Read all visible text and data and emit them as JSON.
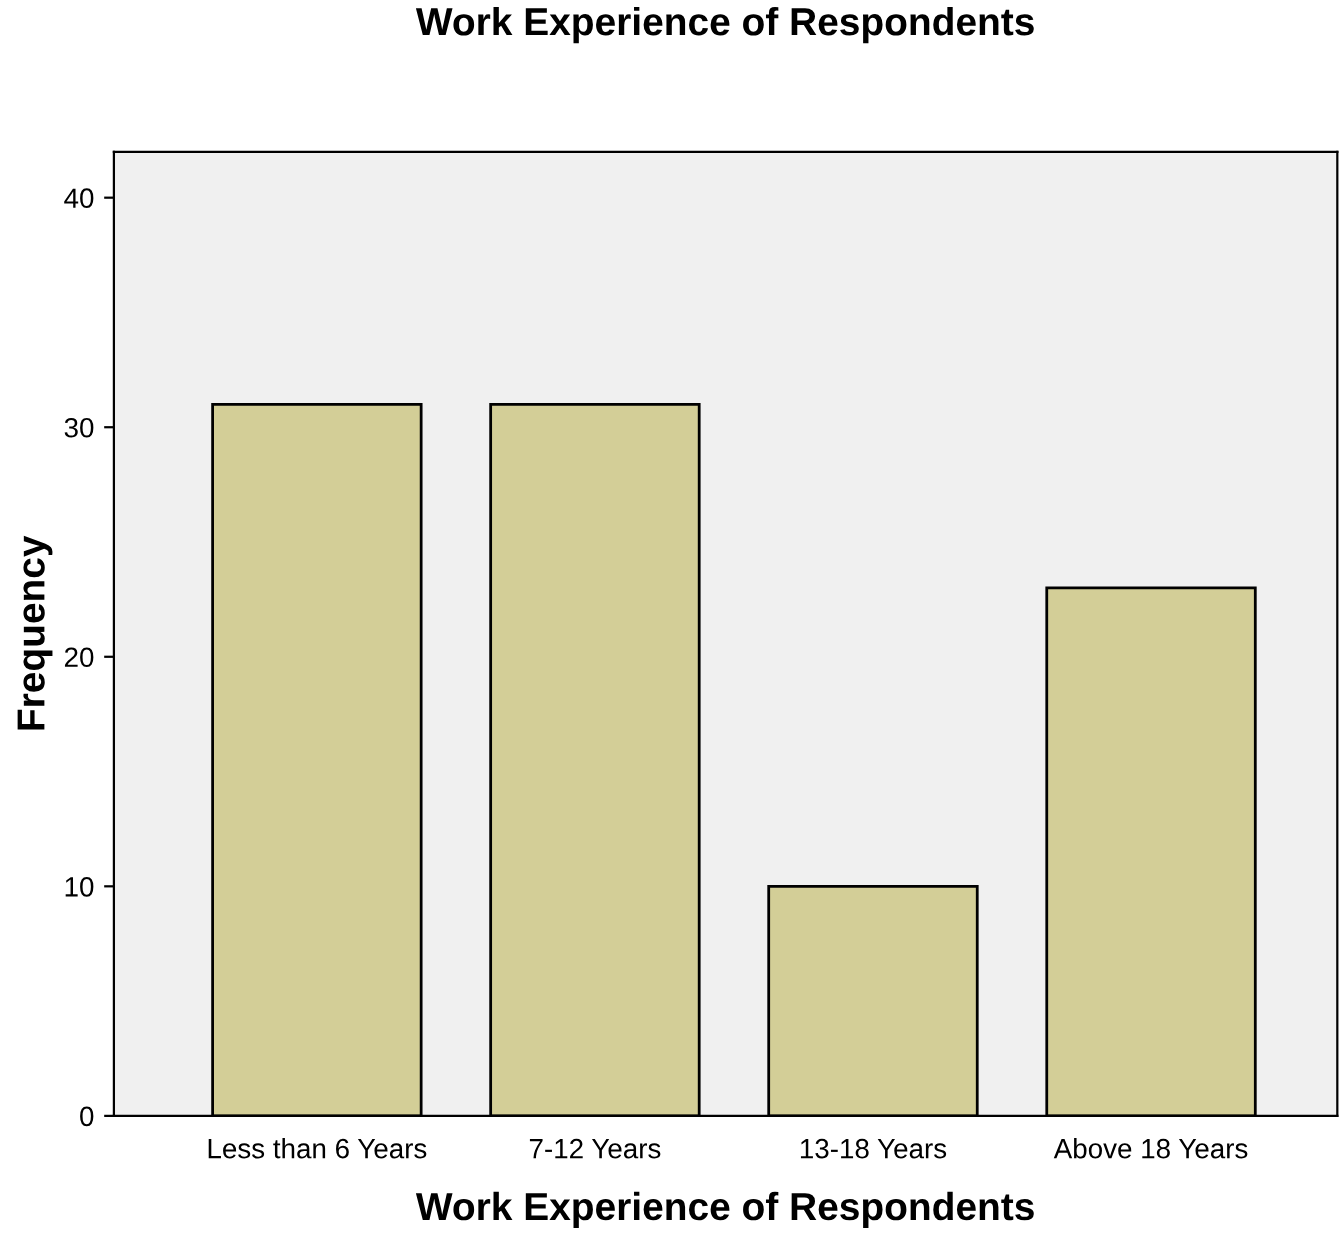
{
  "chart_data": {
    "type": "bar",
    "title": "Work Experience of Respondents",
    "xlabel": "Work Experience of Respondents",
    "ylabel": "Frequency",
    "categories": [
      "Less than 6 Years",
      "7-12 Years",
      "13-18 Years",
      "Above 18 Years"
    ],
    "values": [
      31,
      31,
      10,
      23
    ],
    "color": "#d3ce97",
    "ylim": [
      0,
      42
    ],
    "yticks": [
      0,
      10,
      20,
      30,
      40
    ],
    "grid": false,
    "legend": false
  }
}
